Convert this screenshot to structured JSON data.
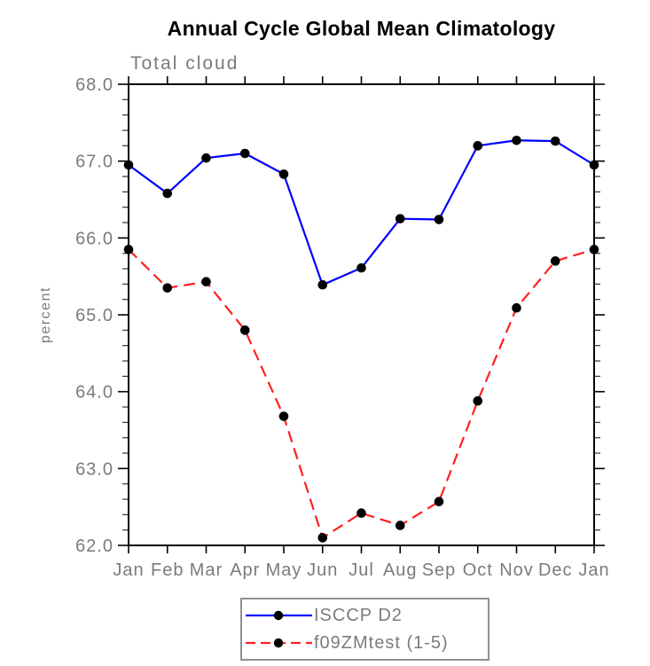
{
  "page": {
    "background": "#ffffff"
  },
  "chart_data": {
    "type": "line",
    "title": "Annual Cycle Global Mean Climatology",
    "subtitle": "Total cloud",
    "ylabel": "percent",
    "xlabel": "",
    "categories": [
      "Jan",
      "Feb",
      "Mar",
      "Apr",
      "May",
      "Jun",
      "Jul",
      "Aug",
      "Sep",
      "Oct",
      "Nov",
      "Dec",
      "Jan"
    ],
    "ylim": [
      62.0,
      68.0
    ],
    "yticks": [
      62,
      63,
      64,
      65,
      66,
      67,
      68
    ],
    "ytick_labels": [
      "62.0",
      "63.0",
      "64.0",
      "65.0",
      "66.0",
      "67.0",
      "68.0"
    ],
    "minor_tick_step": 0.2,
    "grid": false,
    "legend_position": "bottom-center",
    "axis_color": "#000000",
    "tick_label_color": "#7b7b7b",
    "series": [
      {
        "name": "ISCCP D2",
        "line_color": "#0000ff",
        "line_style": "solid",
        "marker": "filled-circle",
        "marker_color": "#000000",
        "values": [
          66.95,
          66.58,
          67.04,
          67.1,
          66.83,
          65.39,
          65.61,
          66.25,
          66.24,
          67.2,
          67.27,
          67.26,
          66.95
        ]
      },
      {
        "name": "f09ZMtest (1-5)",
        "line_color": "#ff2020",
        "line_style": "dashed",
        "marker": "filled-circle",
        "marker_color": "#000000",
        "values": [
          65.85,
          65.35,
          65.43,
          64.8,
          63.68,
          62.1,
          62.42,
          62.26,
          62.57,
          63.88,
          65.09,
          65.7,
          65.85
        ]
      }
    ]
  }
}
